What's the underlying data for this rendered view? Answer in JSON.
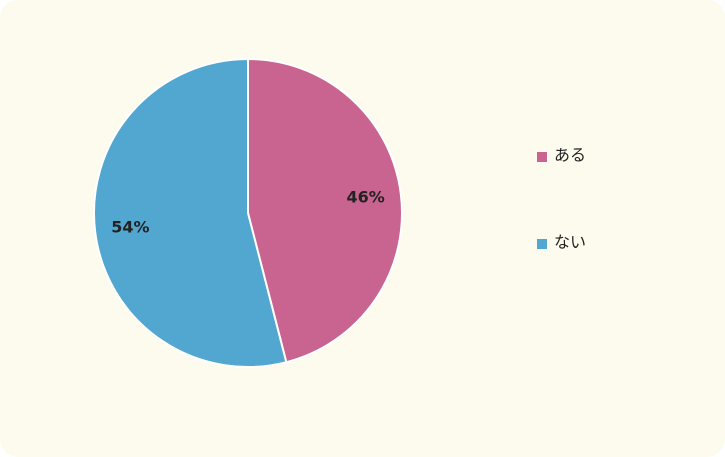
{
  "chart_data": {
    "type": "pie",
    "categories": [
      "ある",
      "ない"
    ],
    "values": [
      46,
      54
    ],
    "value_labels": [
      "46%",
      "54%"
    ],
    "colors": [
      "#c9638f",
      "#52a7d1"
    ],
    "legend": "right"
  }
}
